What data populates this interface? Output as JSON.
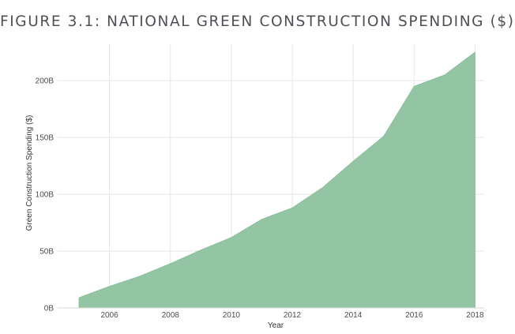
{
  "chart_data": {
    "type": "area",
    "title": "FIGURE 3.1: NATIONAL GREEN CONSTRUCTION SPENDING ($)",
    "xlabel": "Year",
    "ylabel": "Green Construction Spending ($)",
    "x": [
      2005,
      2006,
      2007,
      2008,
      2009,
      2010,
      2011,
      2012,
      2013,
      2014,
      2015,
      2016,
      2017,
      2018
    ],
    "series": [
      {
        "values": [
          9,
          19,
          28,
          39,
          51,
          62,
          78,
          88,
          106,
          129,
          151,
          195,
          205,
          225
        ],
        "color": "#93c5a4"
      }
    ],
    "xticks": [
      2006,
      2008,
      2010,
      2012,
      2014,
      2016,
      2018
    ],
    "xtick_labels": [
      "2006",
      "2008",
      "2010",
      "2012",
      "2014",
      "2016",
      "2018"
    ],
    "yticks": [
      0,
      50,
      100,
      150,
      200
    ],
    "ytick_labels": [
      "0B",
      "50B",
      "100B",
      "150B",
      "200B"
    ],
    "unit": "billions of dollars",
    "xlim": [
      2004.3,
      2018.3
    ],
    "ylim": [
      0,
      232
    ],
    "grid": true,
    "legend": "none"
  },
  "colors": {
    "fill": "#93c5a4",
    "grid": "#e6e6e6",
    "title": "#4f5055"
  }
}
